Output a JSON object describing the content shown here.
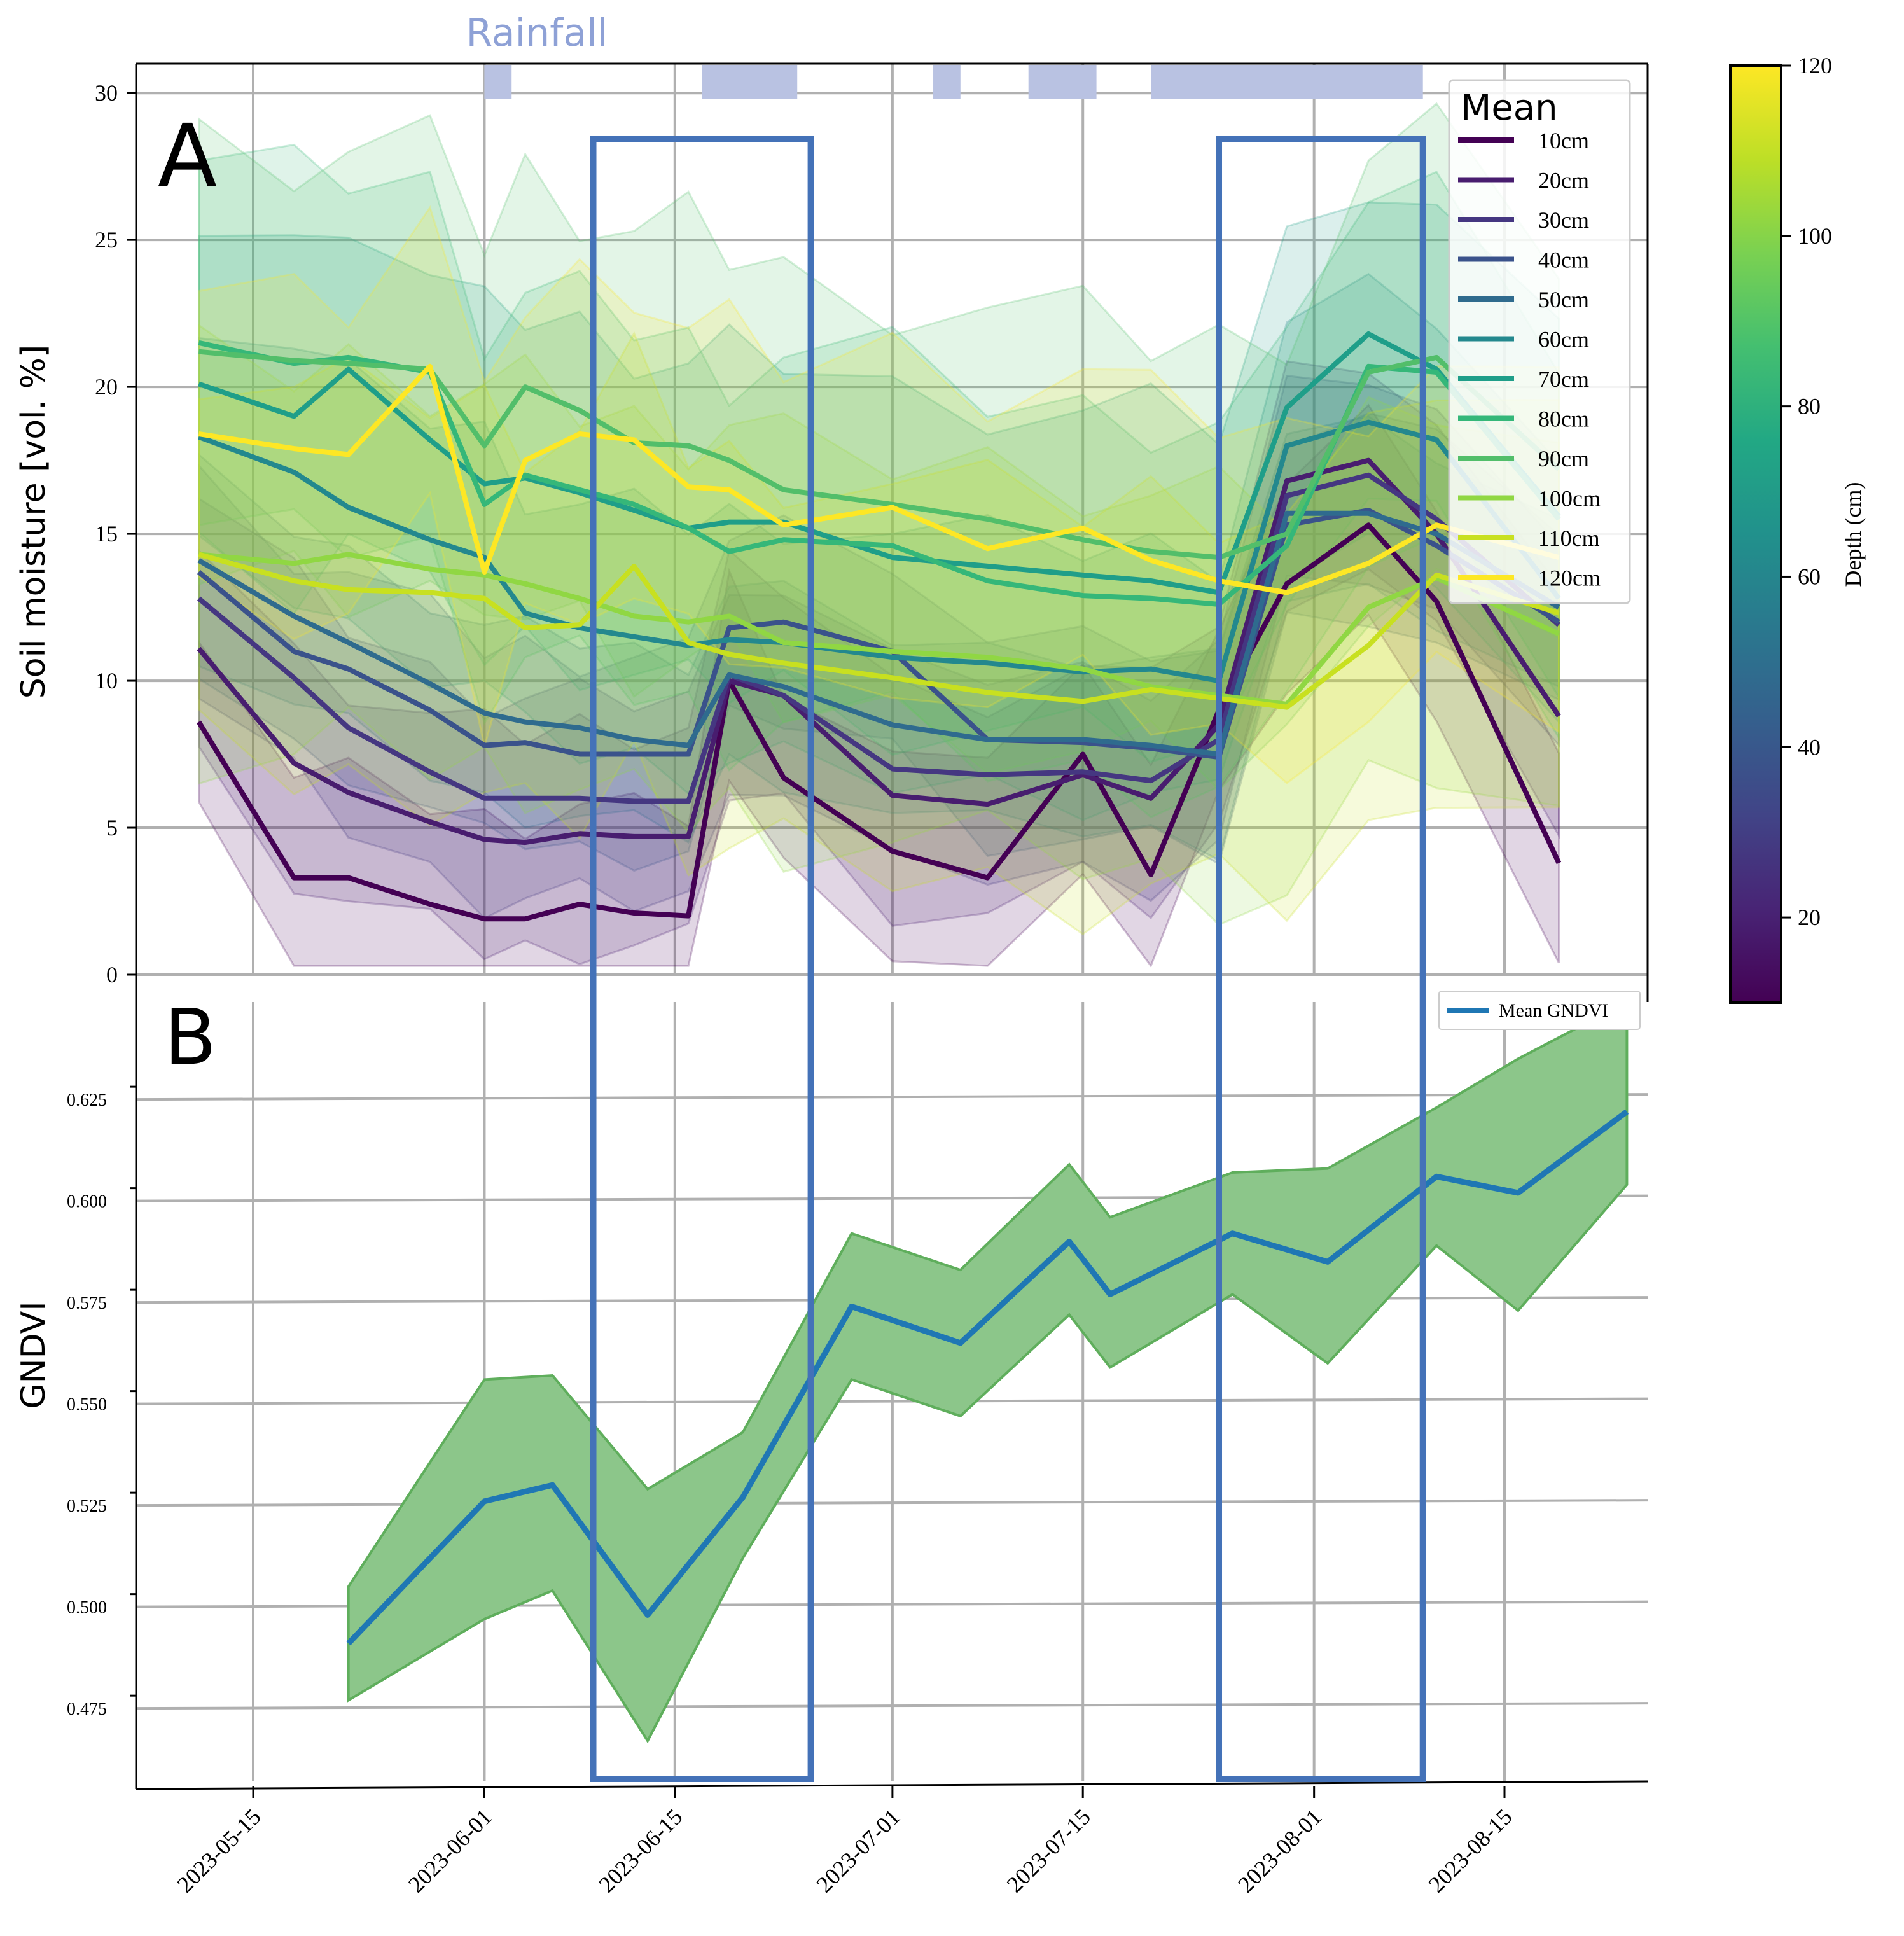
{
  "rainfall_label": "Rainfall",
  "colors": {
    "rain": "#b9c2e2",
    "box": "#4472b8",
    "grid": "#b0b0b0",
    "gndvi_line": "#1f77b4",
    "gndvi_fill": "#8cc68a",
    "gndvi_edge": "#5fae5c"
  },
  "x_ticks": [
    "2023-05-15",
    "2023-06-01",
    "2023-06-15",
    "2023-07-01",
    "2023-07-15",
    "2023-08-01",
    "2023-08-15"
  ],
  "rainfall_periods": [
    {
      "start": "2023-06-01",
      "end": "2023-06-03"
    },
    {
      "start": "2023-06-17",
      "end": "2023-06-24"
    },
    {
      "start": "2023-07-04",
      "end": "2023-07-06"
    },
    {
      "start": "2023-07-11",
      "end": "2023-07-16"
    },
    {
      "start": "2023-07-20",
      "end": "2023-08-09"
    }
  ],
  "highlight_periods": [
    {
      "start": "2023-06-09",
      "end": "2023-06-25"
    },
    {
      "start": "2023-07-25",
      "end": "2023-08-09"
    }
  ],
  "chart_data": [
    {
      "panel": "A",
      "type": "line",
      "ylabel": "Soil moisture [vol. %]",
      "ylim": [
        0,
        31
      ],
      "y_ticks": [
        0,
        5,
        10,
        15,
        20,
        25,
        30
      ],
      "legend_title": "Mean",
      "legend_position": "top-right",
      "grid": true,
      "colorbar": {
        "label": "Depth (cm)",
        "range": [
          10,
          120
        ],
        "ticks": [
          20,
          40,
          60,
          80,
          100,
          120
        ]
      },
      "x": [
        "2023-05-11",
        "2023-05-18",
        "2023-05-22",
        "2023-05-28",
        "2023-06-01",
        "2023-06-04",
        "2023-06-08",
        "2023-06-12",
        "2023-06-16",
        "2023-06-19",
        "2023-06-23",
        "2023-07-01",
        "2023-07-08",
        "2023-07-15",
        "2023-07-20",
        "2023-07-25",
        "2023-07-30",
        "2023-08-05",
        "2023-08-10",
        "2023-08-19"
      ],
      "series": [
        {
          "name": "10cm",
          "color": "#440154",
          "values": [
            8.6,
            3.3,
            3.3,
            2.4,
            1.9,
            1.9,
            2.4,
            2.1,
            2.0,
            10.0,
            6.7,
            4.2,
            3.3,
            7.5,
            3.4,
            9.0,
            13.3,
            15.3,
            12.7,
            3.8
          ]
        },
        {
          "name": "20cm",
          "color": "#481d6f",
          "values": [
            11.1,
            7.2,
            6.2,
            5.2,
            4.6,
            4.5,
            4.8,
            4.7,
            4.7,
            10.0,
            9.5,
            6.1,
            5.8,
            6.8,
            6.0,
            8.5,
            16.8,
            17.5,
            15.0,
            8.8
          ]
        },
        {
          "name": "30cm",
          "color": "#453781",
          "values": [
            12.8,
            10.1,
            8.4,
            6.9,
            6.0,
            6.0,
            6.0,
            5.9,
            5.9,
            10.2,
            9.5,
            7.0,
            6.8,
            6.9,
            6.6,
            8.0,
            16.3,
            17.0,
            15.5,
            11.9
          ]
        },
        {
          "name": "40cm",
          "color": "#3a528b",
          "values": [
            13.7,
            11.0,
            10.4,
            9.0,
            7.8,
            7.9,
            7.5,
            7.5,
            7.5,
            11.8,
            12.0,
            11.0,
            8.0,
            7.9,
            7.7,
            7.4,
            15.3,
            15.8,
            14.6,
            12.0
          ]
        },
        {
          "name": "50cm",
          "color": "#2f6b8e",
          "values": [
            14.1,
            12.2,
            11.3,
            9.9,
            8.9,
            8.6,
            8.4,
            8.0,
            7.8,
            10.2,
            9.8,
            8.5,
            8.0,
            8.0,
            7.8,
            7.5,
            15.7,
            15.7,
            15.0,
            12.5
          ]
        },
        {
          "name": "60cm",
          "color": "#23888e",
          "values": [
            18.3,
            17.1,
            15.9,
            14.8,
            14.2,
            12.3,
            11.8,
            11.5,
            11.2,
            11.4,
            11.3,
            10.8,
            10.6,
            10.3,
            10.4,
            10.0,
            18.0,
            18.8,
            18.2,
            12.8
          ]
        },
        {
          "name": "70cm",
          "color": "#1f9e89",
          "values": [
            20.1,
            19.0,
            20.6,
            18.2,
            16.7,
            16.9,
            16.4,
            15.8,
            15.2,
            15.4,
            15.4,
            14.2,
            13.9,
            13.6,
            13.4,
            13.0,
            19.3,
            21.8,
            20.6,
            15.6
          ]
        },
        {
          "name": "80cm",
          "color": "#35b779",
          "values": [
            21.5,
            20.8,
            21.0,
            20.5,
            16.0,
            17.0,
            16.5,
            16.0,
            15.2,
            14.4,
            14.8,
            14.6,
            13.4,
            12.9,
            12.8,
            12.6,
            14.6,
            20.7,
            20.5,
            15.5
          ]
        },
        {
          "name": "90cm",
          "color": "#52be6a",
          "values": [
            21.2,
            20.9,
            20.8,
            20.6,
            18.0,
            20.0,
            19.2,
            18.1,
            18.0,
            17.5,
            16.5,
            16.0,
            15.5,
            14.8,
            14.4,
            14.2,
            15.0,
            20.5,
            21.0,
            17.2
          ]
        },
        {
          "name": "100cm",
          "color": "#90d743",
          "values": [
            14.3,
            14.0,
            14.3,
            13.8,
            13.6,
            13.3,
            12.8,
            12.2,
            12.0,
            12.2,
            11.3,
            11.0,
            10.8,
            10.4,
            9.8,
            9.5,
            9.2,
            12.5,
            13.5,
            11.6
          ]
        },
        {
          "name": "110cm",
          "color": "#c8e020",
          "values": [
            14.3,
            13.4,
            13.1,
            13.0,
            12.8,
            11.8,
            11.9,
            13.9,
            11.3,
            10.9,
            10.6,
            10.1,
            9.6,
            9.3,
            9.7,
            9.4,
            9.1,
            11.2,
            13.6,
            12.3
          ]
        },
        {
          "name": "120cm",
          "color": "#fde725",
          "values": [
            18.4,
            17.9,
            17.7,
            20.7,
            13.7,
            17.5,
            18.4,
            18.2,
            16.6,
            16.5,
            15.3,
            15.9,
            14.5,
            15.2,
            14.1,
            13.4,
            13.0,
            14.0,
            15.3,
            14.2
          ]
        }
      ]
    },
    {
      "panel": "B",
      "type": "line",
      "ylabel": "GNDVI",
      "ylim": [
        0.457,
        0.649
      ],
      "y_ticks": [
        "0.475",
        "0.500",
        "0.525",
        "0.550",
        "0.575",
        "0.600",
        "0.625"
      ],
      "legend_position": "top-right",
      "grid": true,
      "series": [
        {
          "name": "Mean GNDVI",
          "x": [
            "2023-05-22",
            "2023-06-01",
            "2023-06-06",
            "2023-06-13",
            "2023-06-20",
            "2023-06-28",
            "2023-07-06",
            "2023-07-14",
            "2023-07-17",
            "2023-07-26",
            "2023-08-02",
            "2023-08-10",
            "2023-08-16",
            "2023-08-24"
          ],
          "values": [
            0.491,
            0.526,
            0.53,
            0.498,
            0.527,
            0.574,
            0.565,
            0.59,
            0.577,
            0.592,
            0.585,
            0.606,
            0.602,
            0.622
          ],
          "upper": [
            0.505,
            0.556,
            0.557,
            0.529,
            0.543,
            0.592,
            0.583,
            0.609,
            0.596,
            0.607,
            0.608,
            0.623,
            0.635,
            0.649
          ],
          "lower": [
            0.477,
            0.497,
            0.504,
            0.467,
            0.512,
            0.556,
            0.547,
            0.572,
            0.559,
            0.577,
            0.56,
            0.589,
            0.573,
            0.604
          ]
        }
      ]
    }
  ]
}
